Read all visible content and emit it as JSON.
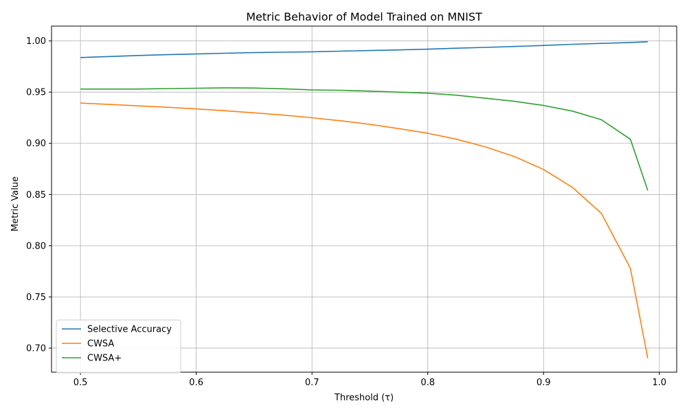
{
  "chart_data": {
    "type": "line",
    "title": "Metric Behavior of Model Trained on MNIST",
    "xlabel": "Threshold (τ)",
    "ylabel": "Metric Value",
    "xlim": [
      0.475,
      1.015
    ],
    "ylim": [
      0.6765,
      1.0145
    ],
    "xticks": [
      0.5,
      0.6,
      0.7,
      0.8,
      0.9,
      1.0
    ],
    "xtick_labels": [
      "0.5",
      "0.6",
      "0.7",
      "0.8",
      "0.9",
      "1.0"
    ],
    "yticks": [
      0.7,
      0.75,
      0.8,
      0.85,
      0.9,
      0.95,
      1.0
    ],
    "ytick_labels": [
      "0.70",
      "0.75",
      "0.80",
      "0.85",
      "0.90",
      "0.95",
      "1.00"
    ],
    "grid": true,
    "legend_position": "lower-left",
    "x": [
      0.5,
      0.525,
      0.55,
      0.575,
      0.6,
      0.625,
      0.65,
      0.675,
      0.7,
      0.725,
      0.75,
      0.775,
      0.8,
      0.825,
      0.85,
      0.875,
      0.9,
      0.925,
      0.95,
      0.975,
      0.99
    ],
    "series": [
      {
        "name": "Selective Accuracy",
        "color": "#1f77b4",
        "values": [
          0.9838,
          0.9848,
          0.9858,
          0.9866,
          0.9873,
          0.988,
          0.9886,
          0.989,
          0.9894,
          0.99,
          0.9906,
          0.9912,
          0.992,
          0.9929,
          0.9937,
          0.9946,
          0.9956,
          0.9967,
          0.9976,
          0.9985,
          0.9992
        ]
      },
      {
        "name": "CWSA",
        "color": "#ff7f0e",
        "values": [
          0.9393,
          0.938,
          0.9366,
          0.9352,
          0.9336,
          0.9318,
          0.9298,
          0.9276,
          0.925,
          0.922,
          0.9185,
          0.9144,
          0.9098,
          0.904,
          0.8965,
          0.887,
          0.8745,
          0.857,
          0.8315,
          0.778,
          0.69
        ]
      },
      {
        "name": "CWSA+",
        "color": "#2ca02c",
        "values": [
          0.953,
          0.953,
          0.953,
          0.9535,
          0.9538,
          0.9542,
          0.954,
          0.9533,
          0.9522,
          0.9518,
          0.951,
          0.95,
          0.949,
          0.947,
          0.944,
          0.941,
          0.937,
          0.9315,
          0.923,
          0.904,
          0.854
        ]
      }
    ]
  }
}
